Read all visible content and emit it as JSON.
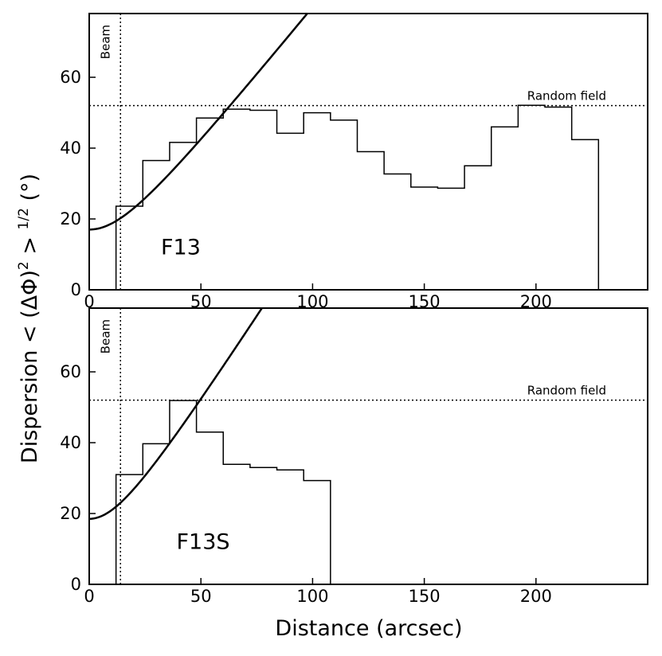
{
  "chart_data": [
    {
      "type": "line",
      "panel_label": "F13",
      "xlabel": "Distance (arcsec)",
      "ylabel": "Dispersion  < (ΔΦ)² > ¹ᐟ² (°)",
      "xlim": [
        0,
        250
      ],
      "ylim": [
        0,
        78
      ],
      "xticks": [
        0,
        50,
        100,
        150,
        200
      ],
      "yticks": [
        0,
        20,
        40,
        60
      ],
      "beam": {
        "x": 14,
        "label": "Beam"
      },
      "random_field": {
        "y": 52,
        "label": "Random field"
      },
      "histogram": {
        "bin_edges": [
          12,
          24,
          36,
          48,
          60,
          72,
          84,
          96,
          108,
          120,
          132,
          144,
          156,
          168,
          180,
          192,
          204,
          216,
          228
        ],
        "values": [
          23.6,
          36.5,
          41.6,
          48.5,
          51.0,
          50.7,
          44.2,
          50.0,
          47.9,
          39.0,
          32.7,
          29.0,
          28.7,
          35.0,
          46.0,
          52.1,
          51.6,
          42.4
        ]
      },
      "model_curve": {
        "b": 17,
        "m": 0.78,
        "x_end": 250
      }
    },
    {
      "type": "line",
      "panel_label": "F13S",
      "xlabel": "Distance (arcsec)",
      "ylabel": "Dispersion  < (ΔΦ)² > ¹ᐟ² (°)",
      "xlim": [
        0,
        250
      ],
      "ylim": [
        0,
        78
      ],
      "xticks": [
        0,
        50,
        100,
        150,
        200
      ],
      "yticks": [
        0,
        20,
        40,
        60
      ],
      "beam": {
        "x": 14,
        "label": "Beam"
      },
      "random_field": {
        "y": 52,
        "label": "Random field"
      },
      "histogram": {
        "bin_edges": [
          12,
          24,
          36,
          48,
          60,
          72,
          84,
          96,
          108
        ],
        "values": [
          31.0,
          39.7,
          51.9,
          43.0,
          33.9,
          33.0,
          32.3,
          29.3
        ]
      },
      "model_curve": {
        "b": 18.5,
        "m": 0.98,
        "x_end": 250
      }
    }
  ],
  "labels": {
    "xlabel": "Distance (arcsec)",
    "ylabel_main": "Dispersion  < (ΔΦ)",
    "ylabel_sup1": "2",
    "ylabel_mid": " > ",
    "ylabel_sup2": "1/2",
    "ylabel_end": " (°)"
  }
}
